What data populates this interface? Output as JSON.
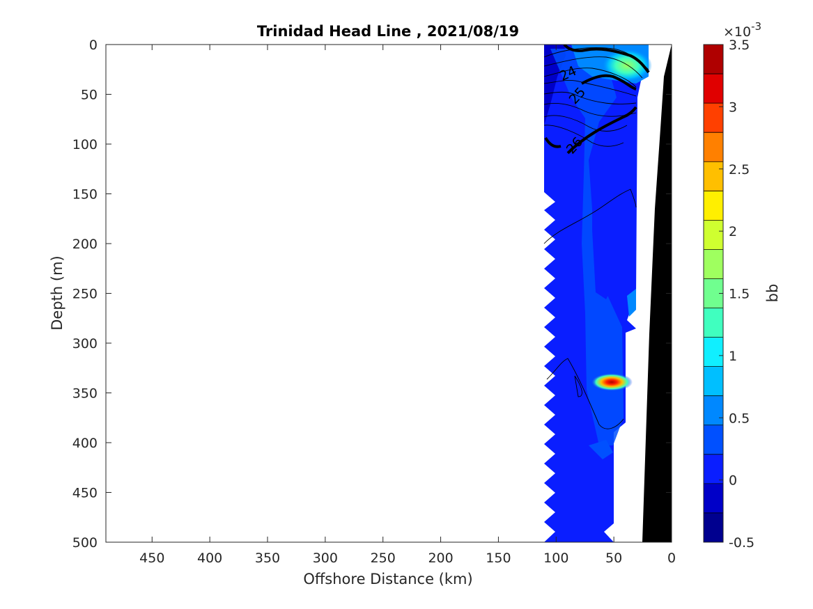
{
  "chart_data": {
    "type": "heatmap",
    "title": "Trinidad Head Line , 2021/08/19",
    "xlabel": "Offshore Distance (km)",
    "ylabel": "Depth (m)",
    "xlim": [
      490,
      0
    ],
    "ylim": [
      0,
      500
    ],
    "x_reversed": true,
    "y_reversed": true,
    "x_ticks": [
      450,
      400,
      350,
      300,
      250,
      200,
      150,
      100,
      50,
      0
    ],
    "y_ticks": [
      0,
      50,
      100,
      150,
      200,
      250,
      300,
      350,
      400,
      450,
      500
    ],
    "colorbar": {
      "label": "bb",
      "exponent_label": "×10",
      "exponent_power": "-3",
      "min": -0.5,
      "max": 3.5,
      "levels": 16,
      "ticks": [
        -0.5,
        0,
        0.5,
        1,
        1.5,
        2,
        2.5,
        3,
        3.5
      ],
      "colors": [
        "#00008f",
        "#0000c8",
        "#0a1eff",
        "#0050ff",
        "#0088ff",
        "#00bfff",
        "#10efff",
        "#40ffbf",
        "#70ff8f",
        "#9fff5f",
        "#cfff30",
        "#ffef00",
        "#ffbf00",
        "#ff8000",
        "#ff4000",
        "#e00000",
        "#af0000"
      ]
    },
    "data_extent": {
      "x_min": 0,
      "x_max": 110,
      "depth_min": 0,
      "depth_max": 500
    },
    "background_value_mean": 0.2,
    "features": [
      {
        "name": "surface maximum",
        "x": 20,
        "depth": 25,
        "value": 1.4
      },
      {
        "name": "subsurface maximum",
        "x": 50,
        "depth": 340,
        "value": 3.3
      }
    ],
    "contour_labels": [
      "24",
      "25",
      "26"
    ],
    "bathymetry_color": "#000000"
  }
}
